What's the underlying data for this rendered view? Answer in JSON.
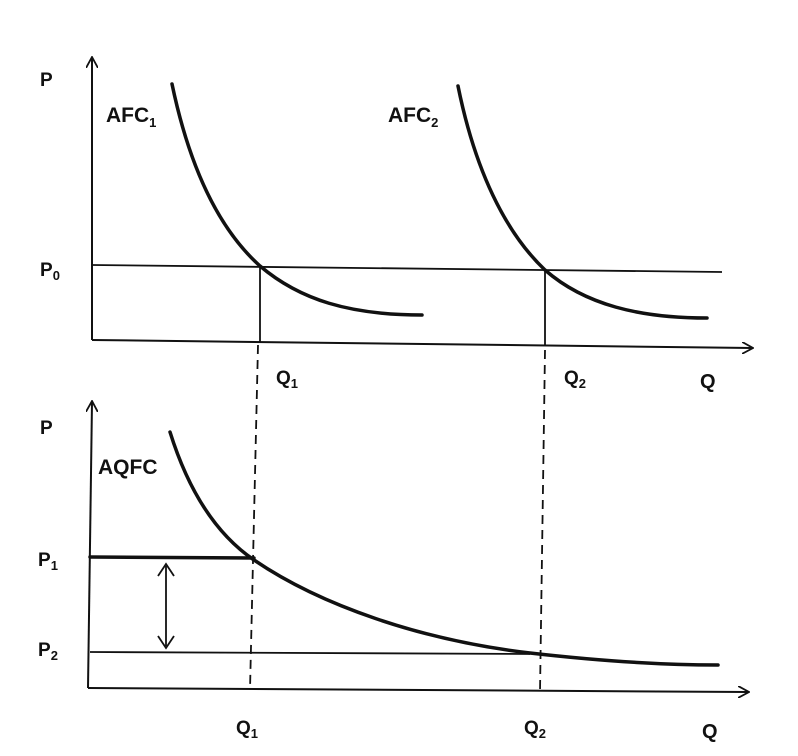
{
  "top_panel": {
    "y_axis_label": "P",
    "x_axis_label": "Q",
    "price_label": {
      "main": "P",
      "sub": "0"
    },
    "curves": [
      {
        "label": {
          "main": "AFC",
          "sub": "1"
        }
      },
      {
        "label": {
          "main": "AFC",
          "sub": "2"
        }
      }
    ],
    "quantity_labels": [
      {
        "main": "Q",
        "sub": "1"
      },
      {
        "main": "Q",
        "sub": "2"
      }
    ]
  },
  "bottom_panel": {
    "y_axis_label": "P",
    "x_axis_label": "Q",
    "curve_label": "AQFC",
    "price_labels": [
      {
        "main": "P",
        "sub": "1"
      },
      {
        "main": "P",
        "sub": "2"
      }
    ],
    "quantity_labels": [
      {
        "main": "Q",
        "sub": "1"
      },
      {
        "main": "Q",
        "sub": "2"
      }
    ]
  }
}
